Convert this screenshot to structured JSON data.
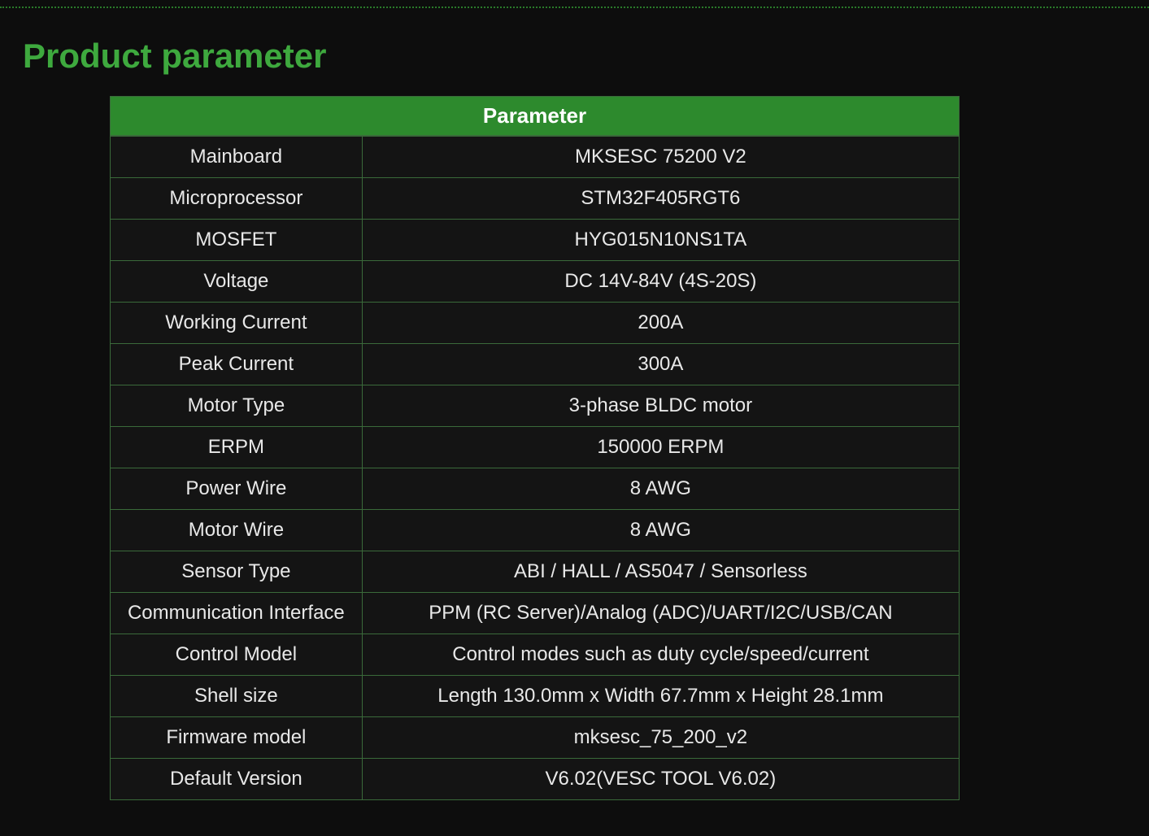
{
  "heading": "Product parameter",
  "table": {
    "header_label": "Parameter",
    "header_bg_color": "#2d8a2d",
    "header_text_color": "#ffffff",
    "border_color": "#3a6a3a",
    "cell_bg_color": "#141414",
    "cell_text_color": "#e8e8e8",
    "heading_color": "#3ea93e",
    "page_bg_color": "#0d0d0d",
    "dotted_line_color": "#2a7a2a",
    "label_col_width": 310,
    "value_col_width": 735,
    "header_fontsize": 26,
    "cell_fontsize": 24,
    "heading_fontsize": 42,
    "rows": [
      {
        "label": "Mainboard",
        "value": "MKSESC 75200 V2"
      },
      {
        "label": "Microprocessor",
        "value": "STM32F405RGT6"
      },
      {
        "label": "MOSFET",
        "value": "HYG015N10NS1TA"
      },
      {
        "label": "Voltage",
        "value": "DC 14V-84V (4S-20S)"
      },
      {
        "label": "Working Current",
        "value": "200A"
      },
      {
        "label": "Peak Current",
        "value": "300A"
      },
      {
        "label": "Motor Type",
        "value": "3-phase BLDC motor"
      },
      {
        "label": "ERPM",
        "value": "150000 ERPM"
      },
      {
        "label": "Power Wire",
        "value": "8 AWG"
      },
      {
        "label": "Motor Wire",
        "value": "8 AWG"
      },
      {
        "label": "Sensor Type",
        "value": "ABI / HALL / AS5047 / Sensorless"
      },
      {
        "label": "Communication Interface",
        "value": "PPM (RC Server)/Analog (ADC)/UART/I2C/USB/CAN"
      },
      {
        "label": "Control Model",
        "value": "Control modes such as duty cycle/speed/current"
      },
      {
        "label": "Shell size",
        "value": "Length 130.0mm x Width 67.7mm x Height 28.1mm"
      },
      {
        "label": "Firmware model",
        "value": "mksesc_75_200_v2"
      },
      {
        "label": "Default Version",
        "value": "V6.02(VESC TOOL V6.02)"
      }
    ]
  }
}
